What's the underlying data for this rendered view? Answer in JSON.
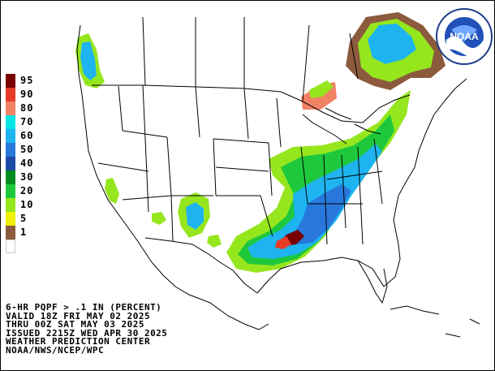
{
  "legend": {
    "items": [
      {
        "label": "95",
        "color": "#7a0000"
      },
      {
        "label": "90",
        "color": "#e63c28"
      },
      {
        "label": "80",
        "color": "#f28264"
      },
      {
        "label": "70",
        "color": "#00e6e6"
      },
      {
        "label": "60",
        "color": "#1eb4f0"
      },
      {
        "label": "50",
        "color": "#2878dc"
      },
      {
        "label": "40",
        "color": "#1e4ba5"
      },
      {
        "label": "30",
        "color": "#008c1e"
      },
      {
        "label": "20",
        "color": "#1ec83c"
      },
      {
        "label": "10",
        "color": "#96e61e"
      },
      {
        "label": "5",
        "color": "#f0f000"
      },
      {
        "label": "1",
        "color": "#8c5a3c"
      },
      {
        "label": "",
        "color": "#ffffff"
      }
    ]
  },
  "caption": {
    "line1": "6-HR PQPF > .1 IN (PERCENT)",
    "line2": "VALID 18Z FRI MAY 02 2025",
    "line3": "THRU 00Z SAT MAY 03 2025",
    "line4": "ISSUED 2215Z WED APR 30 2025",
    "line5": "WEATHER PREDICTION CENTER",
    "line6": "NOAA/NWS/NCEP/WPC"
  },
  "logo": {
    "text": "NOAA"
  }
}
